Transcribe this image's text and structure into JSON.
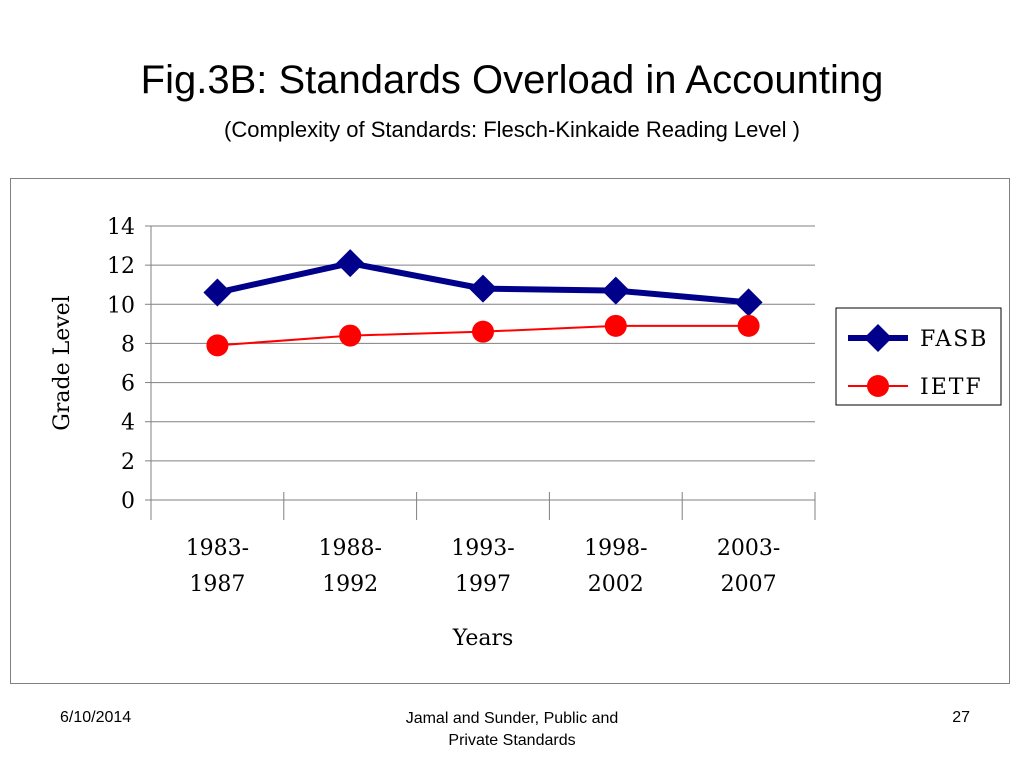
{
  "slide": {
    "title": "Fig.3B: Standards Overload in Accounting",
    "subtitle": "(Complexity of Standards: Flesch-Kinkaide Reading Level )"
  },
  "footer": {
    "date": "6/10/2014",
    "source_line1": "Jamal and Sunder, Public and",
    "source_line2": "Private Standards",
    "page": "27"
  },
  "colors": {
    "fasb": "#00008b",
    "ietf": "#ff0000",
    "grid": "#808080"
  },
  "chart_data": {
    "type": "line",
    "title": "",
    "xlabel": "Years",
    "ylabel": "Grade Level",
    "categories": [
      [
        "1983-",
        "1987"
      ],
      [
        "1988-",
        "1992"
      ],
      [
        "1993-",
        "1997"
      ],
      [
        "1998-",
        "2002"
      ],
      [
        "2003-",
        "2007"
      ]
    ],
    "ylim": [
      0,
      14
    ],
    "yticks": [
      0,
      2,
      4,
      6,
      8,
      10,
      12,
      14
    ],
    "grid": true,
    "legend_position": "right",
    "series": [
      {
        "name": "FASB",
        "values": [
          10.6,
          12.1,
          10.8,
          10.7,
          10.1
        ],
        "marker": "diamond"
      },
      {
        "name": "IETF",
        "values": [
          7.9,
          8.4,
          8.6,
          8.9,
          8.9
        ],
        "marker": "circle"
      }
    ]
  }
}
